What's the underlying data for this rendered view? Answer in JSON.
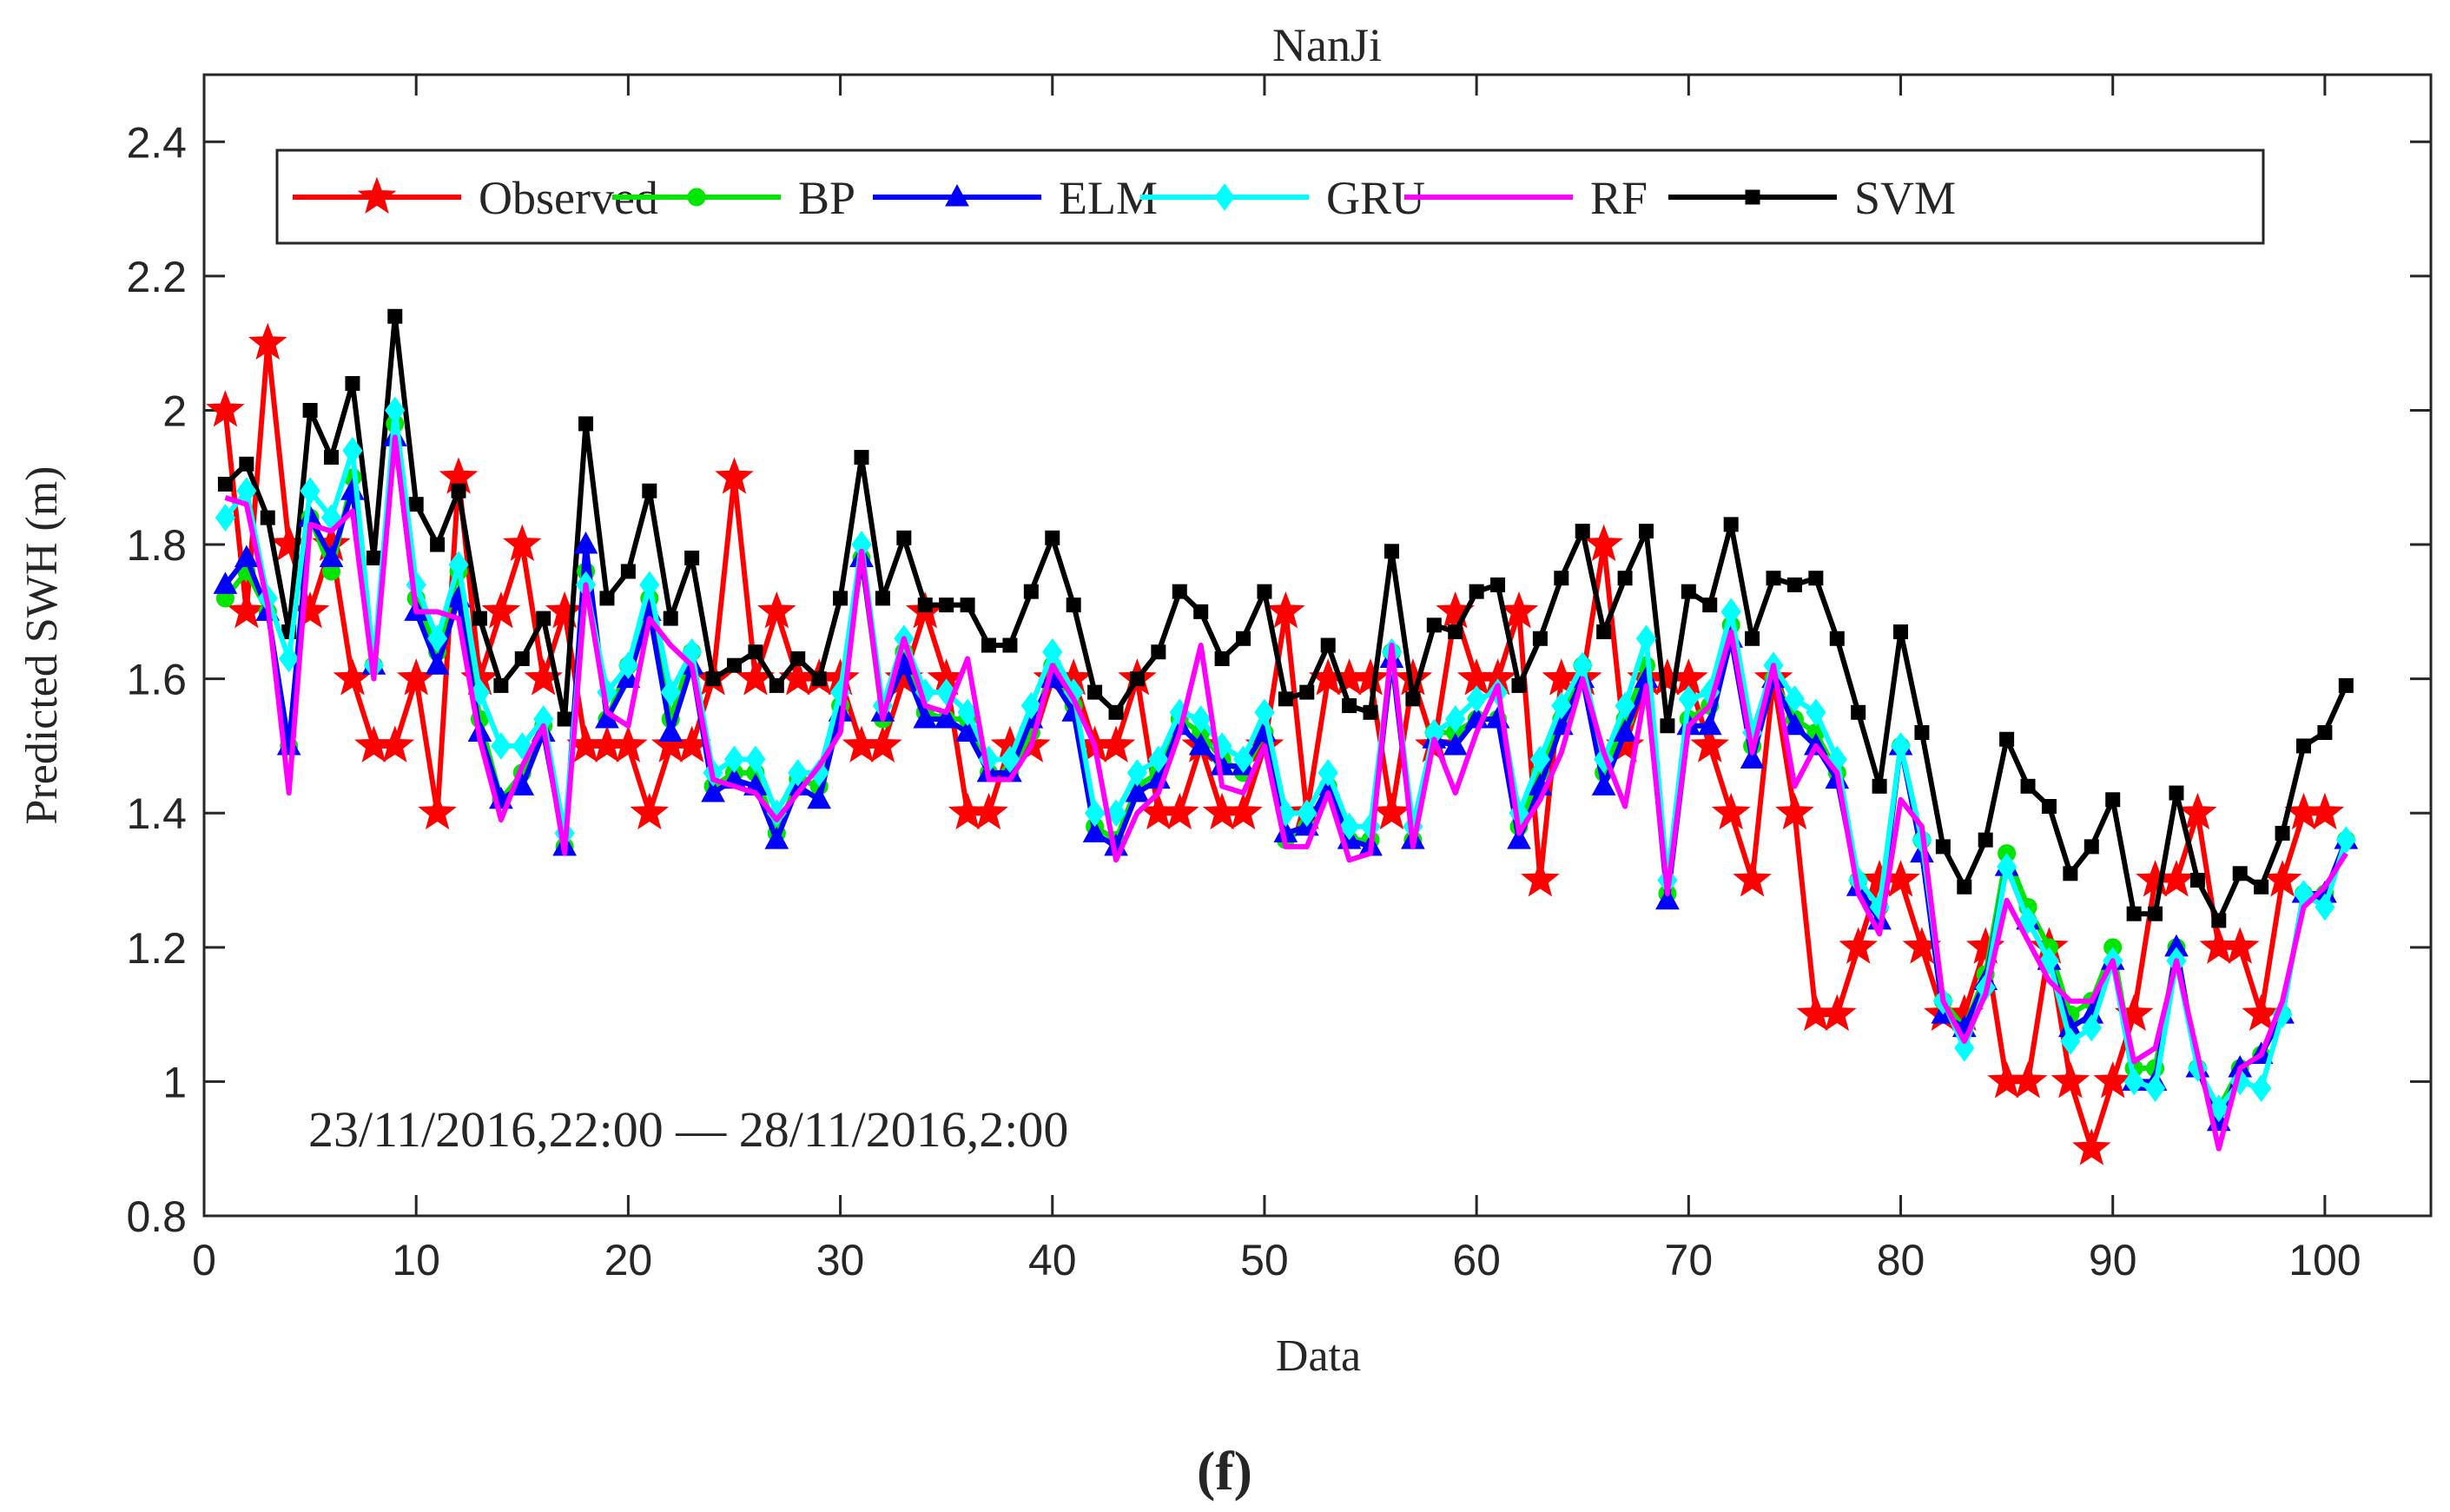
{
  "chart_data": {
    "type": "line",
    "title": "NanJi",
    "xlabel": "Data",
    "ylabel": "Predicted SWH (m)",
    "caption": "(f)",
    "annotation": "23/11/2016,22:00 — 28/11/2016,2:00",
    "xlim": [
      0,
      105
    ],
    "ylim": [
      0.8,
      2.5
    ],
    "x_ticks": [
      0,
      10,
      20,
      30,
      40,
      50,
      60,
      70,
      80,
      90,
      100
    ],
    "y_ticks": [
      0.8,
      1,
      1.2,
      1.4,
      1.6,
      1.8,
      2,
      2.2,
      2.4
    ],
    "y_tick_labels": [
      "0.8",
      "1",
      "1.2",
      "1.4",
      "1.6",
      "1.8",
      "2",
      "2.2",
      "2.4"
    ],
    "grid": false,
    "legend_position": "top, horizontal",
    "x_start": 1,
    "series": [
      {
        "name": "Observed",
        "color": "#ff0000",
        "marker": "star",
        "values": [
          2.0,
          1.7,
          2.1,
          1.8,
          1.7,
          1.8,
          1.6,
          1.5,
          1.5,
          1.6,
          1.4,
          1.9,
          1.6,
          1.7,
          1.8,
          1.6,
          1.7,
          1.5,
          1.5,
          1.5,
          1.4,
          1.5,
          1.5,
          1.6,
          1.9,
          1.6,
          1.7,
          1.6,
          1.6,
          1.6,
          1.5,
          1.5,
          1.6,
          1.7,
          1.6,
          1.4,
          1.4,
          1.5,
          1.5,
          1.6,
          1.6,
          1.5,
          1.5,
          1.6,
          1.4,
          1.4,
          1.5,
          1.4,
          1.4,
          1.5,
          1.7,
          1.4,
          1.6,
          1.6,
          1.6,
          1.4,
          1.6,
          1.5,
          1.7,
          1.6,
          1.6,
          1.7,
          1.3,
          1.6,
          1.6,
          1.8,
          1.5,
          1.6,
          1.6,
          1.6,
          1.5,
          1.4,
          1.3,
          1.6,
          1.4,
          1.1,
          1.1,
          1.2,
          1.3,
          1.3,
          1.2,
          1.1,
          1.1,
          1.2,
          1.0,
          1.0,
          1.2,
          1.0,
          0.9,
          1.0,
          1.1,
          1.3,
          1.3,
          1.4,
          1.2,
          1.2,
          1.1,
          1.3,
          1.4,
          1.4
        ]
      },
      {
        "name": "BP",
        "color": "#00e600",
        "marker": "circle",
        "values": [
          1.72,
          1.76,
          1.7,
          1.5,
          1.84,
          1.76,
          1.9,
          1.62,
          1.98,
          1.72,
          1.64,
          1.76,
          1.54,
          1.42,
          1.46,
          1.53,
          1.35,
          1.76,
          1.54,
          1.62,
          1.72,
          1.54,
          1.64,
          1.44,
          1.46,
          1.46,
          1.37,
          1.45,
          1.44,
          1.56,
          1.78,
          1.54,
          1.64,
          1.55,
          1.54,
          1.54,
          1.46,
          1.46,
          1.52,
          1.62,
          1.56,
          1.38,
          1.36,
          1.44,
          1.46,
          1.54,
          1.52,
          1.48,
          1.46,
          1.52,
          1.36,
          1.38,
          1.44,
          1.36,
          1.36,
          1.64,
          1.36,
          1.52,
          1.52,
          1.54,
          1.54,
          1.38,
          1.46,
          1.54,
          1.62,
          1.46,
          1.54,
          1.62,
          1.28,
          1.54,
          1.56,
          1.68,
          1.5,
          1.6,
          1.54,
          1.52,
          1.46,
          1.3,
          1.26,
          1.5,
          1.36,
          1.12,
          1.08,
          1.16,
          1.34,
          1.26,
          1.2,
          1.1,
          1.12,
          1.2,
          1.02,
          1.02,
          1.2,
          1.02,
          0.96,
          1.02,
          1.04,
          1.1,
          1.28,
          1.28,
          1.36
        ]
      },
      {
        "name": "ELM",
        "color": "#0000ff",
        "marker": "triangle",
        "values": [
          1.74,
          1.78,
          1.7,
          1.5,
          1.84,
          1.78,
          1.88,
          1.62,
          1.96,
          1.7,
          1.62,
          1.72,
          1.52,
          1.42,
          1.44,
          1.52,
          1.35,
          1.8,
          1.54,
          1.6,
          1.7,
          1.52,
          1.62,
          1.43,
          1.45,
          1.44,
          1.36,
          1.44,
          1.42,
          1.55,
          1.78,
          1.55,
          1.62,
          1.54,
          1.54,
          1.52,
          1.46,
          1.46,
          1.54,
          1.6,
          1.55,
          1.37,
          1.35,
          1.43,
          1.45,
          1.53,
          1.5,
          1.47,
          1.47,
          1.52,
          1.37,
          1.38,
          1.44,
          1.36,
          1.35,
          1.63,
          1.36,
          1.51,
          1.5,
          1.54,
          1.54,
          1.36,
          1.44,
          1.53,
          1.6,
          1.44,
          1.52,
          1.6,
          1.27,
          1.53,
          1.53,
          1.66,
          1.48,
          1.6,
          1.53,
          1.5,
          1.45,
          1.29,
          1.24,
          1.5,
          1.34,
          1.1,
          1.08,
          1.15,
          1.32,
          1.24,
          1.18,
          1.08,
          1.1,
          1.18,
          1.0,
          1.0,
          1.2,
          1.02,
          0.94,
          1.02,
          1.04,
          1.1,
          1.28,
          1.28,
          1.36
        ]
      },
      {
        "name": "GRU",
        "color": "#00ffff",
        "marker": "diamond",
        "values": [
          1.84,
          1.88,
          1.72,
          1.63,
          1.88,
          1.84,
          1.94,
          1.62,
          2.0,
          1.74,
          1.66,
          1.77,
          1.58,
          1.5,
          1.5,
          1.54,
          1.37,
          1.74,
          1.58,
          1.62,
          1.74,
          1.58,
          1.64,
          1.46,
          1.48,
          1.48,
          1.4,
          1.46,
          1.46,
          1.58,
          1.8,
          1.56,
          1.66,
          1.58,
          1.58,
          1.55,
          1.48,
          1.48,
          1.56,
          1.64,
          1.58,
          1.4,
          1.4,
          1.46,
          1.48,
          1.55,
          1.54,
          1.5,
          1.48,
          1.55,
          1.4,
          1.4,
          1.46,
          1.38,
          1.38,
          1.64,
          1.38,
          1.52,
          1.54,
          1.57,
          1.58,
          1.4,
          1.48,
          1.56,
          1.62,
          1.48,
          1.56,
          1.66,
          1.3,
          1.57,
          1.58,
          1.7,
          1.52,
          1.62,
          1.57,
          1.55,
          1.48,
          1.3,
          1.26,
          1.5,
          1.36,
          1.12,
          1.05,
          1.14,
          1.32,
          1.24,
          1.18,
          1.06,
          1.08,
          1.18,
          1.0,
          0.99,
          1.18,
          1.02,
          0.96,
          1.0,
          0.99,
          1.1,
          1.28,
          1.26,
          1.36
        ]
      },
      {
        "name": "RF",
        "color": "#ff00ff",
        "marker": "none",
        "values": [
          1.87,
          1.86,
          1.71,
          1.43,
          1.83,
          1.82,
          1.85,
          1.6,
          1.96,
          1.7,
          1.7,
          1.69,
          1.51,
          1.39,
          1.47,
          1.53,
          1.34,
          1.74,
          1.55,
          1.53,
          1.69,
          1.65,
          1.62,
          1.45,
          1.44,
          1.43,
          1.39,
          1.43,
          1.47,
          1.52,
          1.79,
          1.54,
          1.66,
          1.56,
          1.55,
          1.63,
          1.45,
          1.45,
          1.5,
          1.62,
          1.57,
          1.5,
          1.33,
          1.4,
          1.43,
          1.52,
          1.65,
          1.44,
          1.43,
          1.5,
          1.35,
          1.35,
          1.43,
          1.33,
          1.34,
          1.65,
          1.35,
          1.51,
          1.43,
          1.52,
          1.59,
          1.37,
          1.42,
          1.49,
          1.6,
          1.49,
          1.41,
          1.59,
          1.28,
          1.53,
          1.56,
          1.67,
          1.49,
          1.62,
          1.44,
          1.5,
          1.46,
          1.28,
          1.22,
          1.42,
          1.38,
          1.12,
          1.06,
          1.13,
          1.27,
          1.21,
          1.15,
          1.12,
          1.12,
          1.18,
          1.03,
          1.05,
          1.18,
          1.04,
          0.9,
          1.02,
          1.04,
          1.12,
          1.26,
          1.29,
          1.34
        ]
      },
      {
        "name": "SVM",
        "color": "#000000",
        "marker": "square",
        "values": [
          1.89,
          1.92,
          1.84,
          1.67,
          2.0,
          1.93,
          2.04,
          1.78,
          2.14,
          1.86,
          1.8,
          1.88,
          1.69,
          1.59,
          1.63,
          1.69,
          1.54,
          1.98,
          1.72,
          1.76,
          1.88,
          1.69,
          1.78,
          1.6,
          1.62,
          1.64,
          1.59,
          1.63,
          1.6,
          1.72,
          1.93,
          1.72,
          1.81,
          1.71,
          1.71,
          1.71,
          1.65,
          1.65,
          1.73,
          1.81,
          1.71,
          1.58,
          1.55,
          1.6,
          1.64,
          1.73,
          1.7,
          1.63,
          1.66,
          1.73,
          1.57,
          1.58,
          1.65,
          1.56,
          1.55,
          1.79,
          1.57,
          1.68,
          1.67,
          1.73,
          1.74,
          1.59,
          1.66,
          1.75,
          1.82,
          1.67,
          1.75,
          1.82,
          1.53,
          1.73,
          1.71,
          1.83,
          1.66,
          1.75,
          1.74,
          1.75,
          1.66,
          1.55,
          1.44,
          1.67,
          1.52,
          1.35,
          1.29,
          1.36,
          1.51,
          1.44,
          1.41,
          1.31,
          1.35,
          1.42,
          1.25,
          1.25,
          1.43,
          1.3,
          1.24,
          1.31,
          1.29,
          1.37,
          1.5,
          1.52,
          1.59
        ]
      }
    ]
  }
}
